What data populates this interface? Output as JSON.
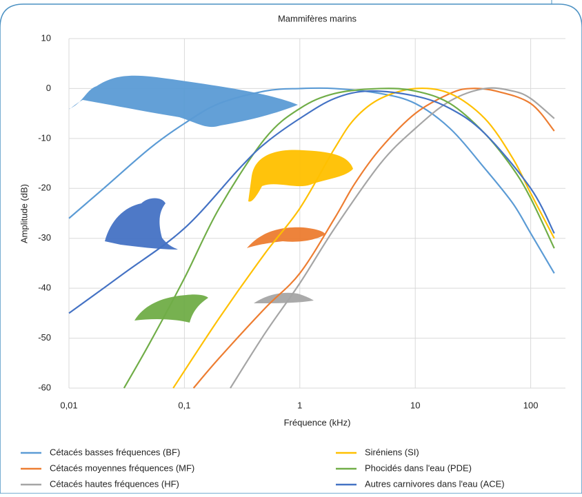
{
  "chart_data": {
    "type": "line",
    "title": "Mammifères marins",
    "x_label": "Fréquence (kHz)",
    "y_label": "Amplitude (dB)",
    "log_x": true,
    "grid": true,
    "xlim": [
      0.01,
      200
    ],
    "ylim": [
      -60,
      10
    ],
    "xticks": [
      {
        "value": 0.01,
        "label": "0,01"
      },
      {
        "value": 0.1,
        "label": "0,1"
      },
      1,
      10,
      100
    ],
    "yticks": [
      -60,
      -50,
      -40,
      -30,
      -20,
      -10,
      0,
      10
    ],
    "series": [
      {
        "name": "Cétacés basses fréquences (BF)",
        "color": "#5b9bd5",
        "x": [
          0.01,
          0.02,
          0.05,
          0.1,
          0.2,
          0.5,
          1,
          2,
          5,
          10,
          20,
          40,
          70,
          100,
          160
        ],
        "values": [
          -26,
          -20,
          -12,
          -7,
          -3,
          -0.5,
          0,
          0,
          -1,
          -3,
          -8,
          -16,
          -23,
          -29,
          -37
        ]
      },
      {
        "name": "Cétacés moyennes fréquences  (MF)",
        "color": "#ed7d31",
        "x": [
          0.12,
          0.2,
          0.5,
          1,
          2,
          3,
          5,
          10,
          20,
          30,
          50,
          100,
          160
        ],
        "values": [
          -60,
          -54,
          -44,
          -37,
          -26,
          -19,
          -12,
          -5,
          -1,
          0,
          -0.5,
          -3,
          -8.5
        ]
      },
      {
        "name": "Cétacés hautes fréquences  (HF)",
        "color": "#a5a5a5",
        "x": [
          0.25,
          0.5,
          1,
          2,
          5,
          10,
          20,
          40,
          70,
          100,
          160
        ],
        "values": [
          -60,
          -49,
          -39,
          -28,
          -15,
          -8,
          -2.5,
          0,
          -0.5,
          -2,
          -6
        ]
      },
      {
        "name": "Siréniens (SI)",
        "color": "#ffc000",
        "x": [
          0.08,
          0.2,
          0.5,
          1,
          2,
          3,
          5,
          10,
          20,
          40,
          70,
          100,
          160
        ],
        "values": [
          -60,
          -46,
          -33,
          -24,
          -12,
          -6,
          -2,
          0,
          -1,
          -6,
          -14,
          -21,
          -30
        ]
      },
      {
        "name": "Phocidés dans l'eau (PDE)",
        "color": "#70ad47",
        "x": [
          0.03,
          0.05,
          0.1,
          0.2,
          0.5,
          1,
          2,
          5,
          10,
          20,
          40,
          70,
          100,
          160
        ],
        "values": [
          -60,
          -51,
          -38,
          -24,
          -10,
          -4,
          -1,
          0,
          -0.5,
          -3,
          -9,
          -16,
          -22,
          -32
        ]
      },
      {
        "name": "Autres carnivores dans l'eau (ACE)",
        "color": "#4472c4",
        "x": [
          0.01,
          0.03,
          0.1,
          0.3,
          0.5,
          1,
          2,
          4,
          10,
          20,
          40,
          100,
          160
        ],
        "values": [
          -45,
          -37,
          -28,
          -16,
          -11,
          -6,
          -2,
          -0.5,
          -1.5,
          -4,
          -9,
          -20,
          -29
        ]
      }
    ]
  }
}
